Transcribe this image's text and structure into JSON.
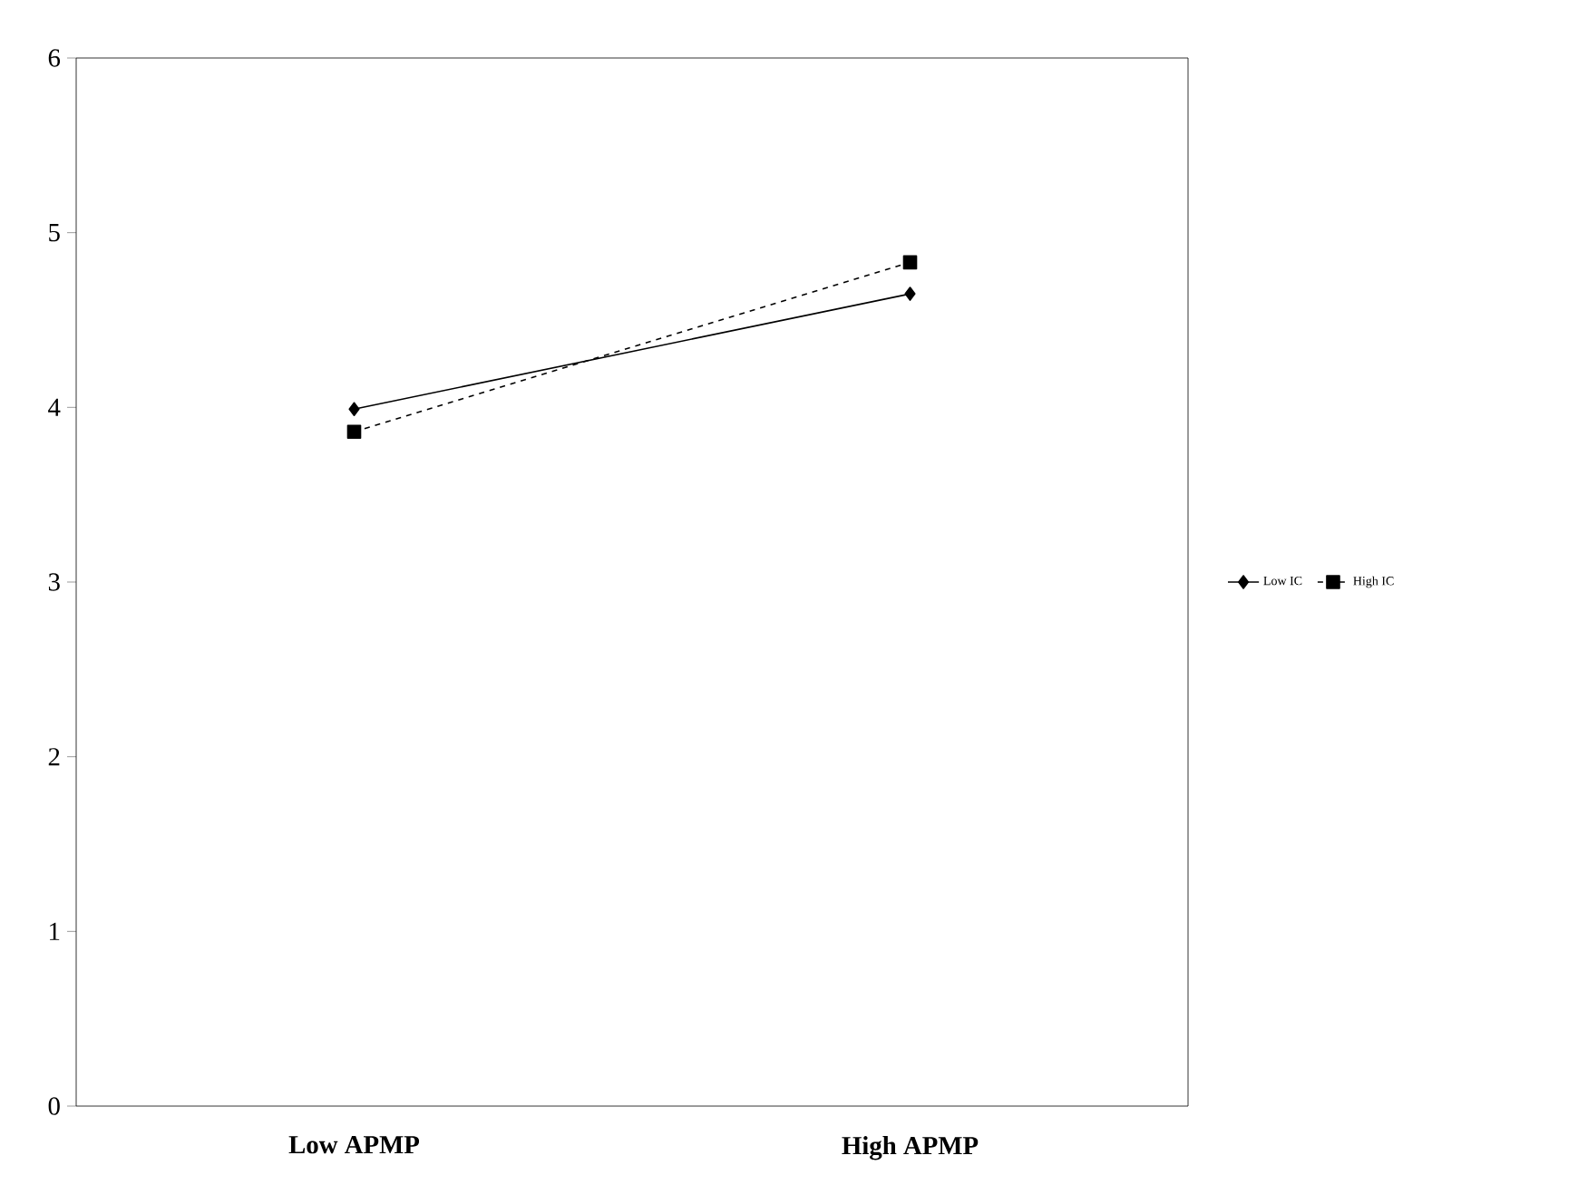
{
  "chart_data": {
    "type": "line",
    "categories": [
      "Low APMP",
      "High APMP"
    ],
    "series": [
      {
        "name": "Low IC",
        "color": "#000000",
        "values": [
          3.99,
          4.65
        ],
        "marker": "diamond",
        "line_style": "solid"
      },
      {
        "name": "High IC",
        "color": "#000000",
        "values": [
          3.86,
          4.83
        ],
        "marker": "square",
        "line_style": "dashed"
      }
    ],
    "ylim": [
      0,
      6
    ],
    "yticks": [
      0,
      1,
      2,
      3,
      4,
      5,
      6
    ],
    "grid": false,
    "legend": "right"
  }
}
